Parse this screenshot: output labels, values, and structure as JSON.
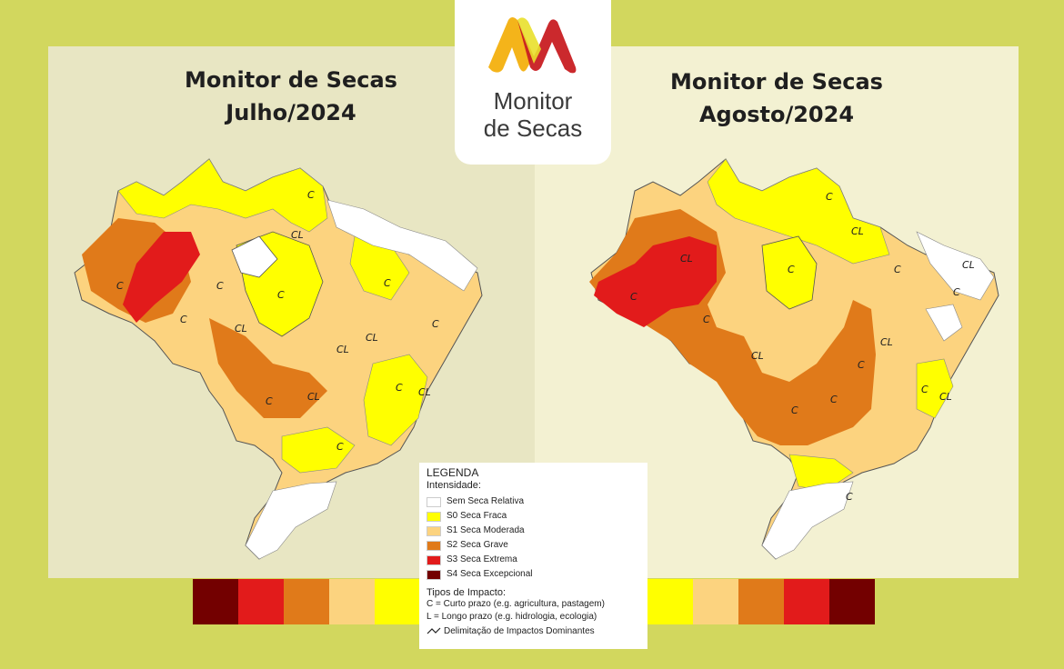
{
  "titles": {
    "left": [
      "Monitor de Secas",
      "Julho/2024"
    ],
    "right": [
      "Monitor de Secas",
      "Agosto/2024"
    ]
  },
  "logo": {
    "line1": "Monitor",
    "line2": "de Secas"
  },
  "legend": {
    "title": "LEGENDA",
    "intensity_heading": "Intensidade:",
    "intensity": [
      {
        "label": "Sem Seca Relativa",
        "color": "#ffffff"
      },
      {
        "label": "S0 Seca Fraca",
        "color": "#ffff00"
      },
      {
        "label": "S1 Seca Moderada",
        "color": "#fcd37f"
      },
      {
        "label": "S2 Seca Grave",
        "color": "#e07a1a"
      },
      {
        "label": "S3 Seca Extrema",
        "color": "#e21b1b"
      },
      {
        "label": "S4 Seca Excepcional",
        "color": "#730000"
      }
    ],
    "impact_heading": "Tipos de Impacto:",
    "impacts": [
      "C = Curto prazo (e.g. agricultura, pastagem)",
      "L = Longo prazo (e.g. hidrologia, ecologia)"
    ],
    "delimitation": "Delimitação de Impactos Dominantes"
  },
  "scale_colors": {
    "left": [
      "#730000",
      "#e21b1b",
      "#e07a1a",
      "#fcd37f",
      "#ffff00"
    ],
    "right": [
      "#ffff00",
      "#fcd37f",
      "#e07a1a",
      "#e21b1b",
      "#730000"
    ]
  },
  "map_labels": {
    "left": [
      "C",
      "CL",
      "C",
      "C",
      "C",
      "C",
      "CL",
      "CL",
      "CL",
      "C",
      "CL",
      "C",
      "C",
      "C",
      "C",
      "CL"
    ],
    "right": [
      "C",
      "CL",
      "CL",
      "C",
      "C",
      "C",
      "C",
      "CL",
      "CL",
      "C",
      "C",
      "C",
      "C",
      "CL",
      "C",
      "CL",
      "C"
    ]
  }
}
